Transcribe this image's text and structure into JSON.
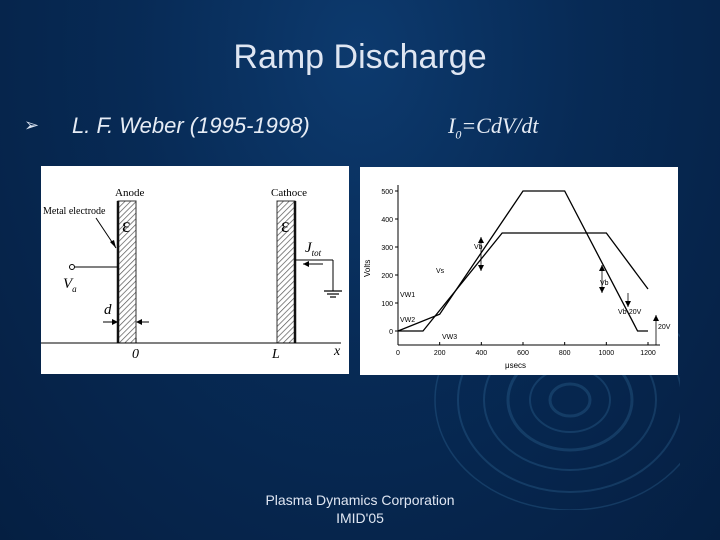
{
  "slide": {
    "title": "Ramp Discharge",
    "bullet": "L. F. Weber (1995-1998)",
    "formula": {
      "lead": "I",
      "sub": "0",
      "tail": "=CdV/dt"
    },
    "footer": {
      "line1": "Plasma Dynamics Corporation",
      "line2": "IMID'05"
    }
  },
  "left_figure": {
    "anode_label": "Anode",
    "cathode_label": "Cathoce",
    "metal_electrode_label": "Metal electrode",
    "epsilon": "ε",
    "current_label": "J",
    "current_sub": "tot",
    "voltage_label": "V",
    "voltage_sub": "a",
    "thickness_label": "d",
    "origin_label": "0",
    "length_label": "L",
    "axis_label": "x"
  },
  "right_figure": {
    "ylabel": "Volts",
    "xlabel": "μsecs",
    "y_ticks": [
      "500",
      "400",
      "300",
      "200",
      "100",
      "0"
    ],
    "x_ticks": [
      "0",
      "200",
      "400",
      "600",
      "800",
      "1000",
      "1200"
    ],
    "labels": {
      "vb1": "Vb",
      "vb2": "Vb",
      "vs": "Vs",
      "vw1": "VW1",
      "vw2": "VW2",
      "vw3": "VW3",
      "vb20": "Vb-20V",
      "v20": "20V"
    }
  },
  "chart_data": {
    "type": "line",
    "xlabel": "μsecs",
    "ylabel": "Volts",
    "xlim": [
      0,
      1200
    ],
    "ylim": [
      0,
      500
    ],
    "series": [
      {
        "x": [
          0,
          200,
          600,
          800,
          1150,
          1200
        ],
        "y": [
          0,
          60,
          500,
          500,
          0,
          0
        ]
      },
      {
        "x": [
          0,
          120,
          500,
          1000,
          1200
        ],
        "y": [
          0,
          0,
          350,
          350,
          150
        ]
      }
    ]
  }
}
